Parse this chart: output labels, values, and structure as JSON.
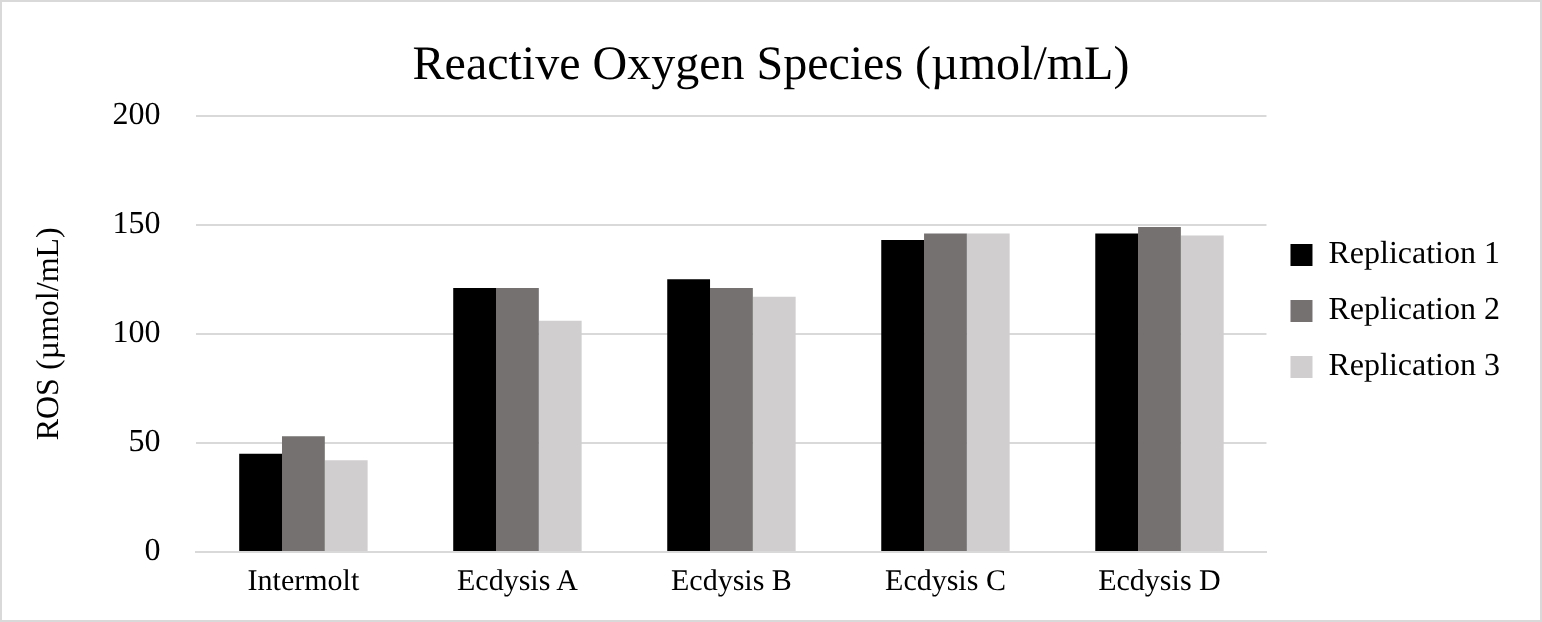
{
  "chart_data": {
    "type": "bar",
    "title": "Reactive Oxygen Species (µmol/mL)",
    "ylabel": "ROS (µmol/mL)",
    "categories": [
      "Intermolt",
      "Ecdysis A",
      "Ecdysis B",
      "Ecdysis C",
      "Ecdysis D"
    ],
    "series": [
      {
        "name": "Replication 1",
        "color": "#000000",
        "values": [
          45,
          121,
          125,
          143,
          146
        ]
      },
      {
        "name": "Replication 2",
        "color": "#757171",
        "values": [
          53,
          121,
          121,
          146,
          149
        ]
      },
      {
        "name": "Replication 3",
        "color": "#d0cece",
        "values": [
          42,
          106,
          117,
          146,
          145
        ]
      }
    ],
    "ylim": [
      0,
      200
    ],
    "yticks": [
      0,
      50,
      100,
      150,
      200
    ],
    "grid": "y",
    "legend": "right"
  }
}
